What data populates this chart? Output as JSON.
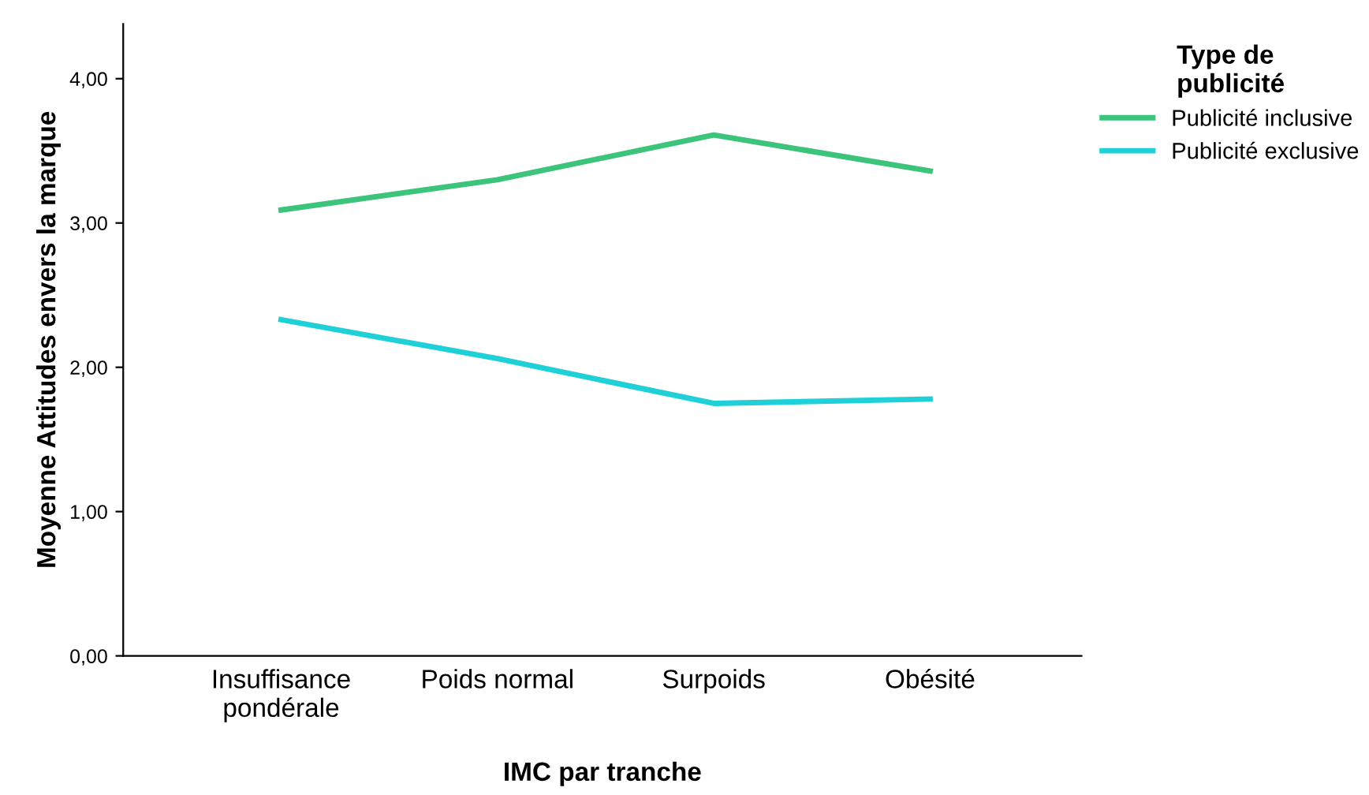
{
  "chart_data": {
    "type": "line",
    "xlabel": "IMC par tranche",
    "ylabel": "Moyenne Attitudes envers la marque",
    "legend_title": "Type de\npublicité",
    "categories": [
      "Insuffisance\npondérale",
      "Poids normal",
      "Surpoids",
      "Obésité"
    ],
    "series": [
      {
        "name": "Publicité inclusive",
        "color": "#3cc47c",
        "values": [
          3.09,
          3.3,
          3.61,
          3.36
        ]
      },
      {
        "name": "Publicité exclusive",
        "color": "#1fd0d8",
        "values": [
          2.33,
          2.06,
          1.75,
          1.78
        ]
      }
    ],
    "ylim": [
      0,
      4.38
    ],
    "yticks": [
      {
        "value": 0,
        "label": "0,00"
      },
      {
        "value": 1,
        "label": "1,00"
      },
      {
        "value": 2,
        "label": "2,00"
      },
      {
        "value": 3,
        "label": "3,00"
      },
      {
        "value": 4,
        "label": "4,00"
      }
    ],
    "grid": false,
    "legend": "top right",
    "marker": "none",
    "line_style": "solid"
  }
}
